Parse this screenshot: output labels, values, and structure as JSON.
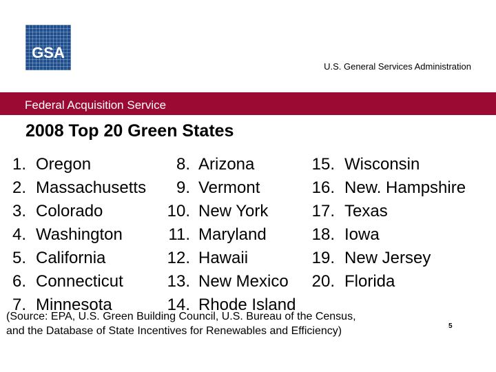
{
  "header": {
    "logo_text": "GSA",
    "agency_name": "U.S. General Services Administration"
  },
  "band": {
    "label": "Federal Acquisition Service"
  },
  "title": "2008 Top 20 Green States",
  "states": [
    {
      "rank": "1.",
      "name": "Oregon"
    },
    {
      "rank": "2.",
      "name": "Massachusetts"
    },
    {
      "rank": "3.",
      "name": "Colorado"
    },
    {
      "rank": "4.",
      "name": "Washington"
    },
    {
      "rank": "5.",
      "name": "California"
    },
    {
      "rank": "6.",
      "name": "Connecticut"
    },
    {
      "rank": "7.",
      "name": "Minnesota"
    },
    {
      "rank": "8.",
      "name": "Arizona"
    },
    {
      "rank": "9.",
      "name": "Vermont"
    },
    {
      "rank": "10.",
      "name": "New York"
    },
    {
      "rank": "11.",
      "name": "Maryland"
    },
    {
      "rank": "12.",
      "name": "Hawaii"
    },
    {
      "rank": "13.",
      "name": "New Mexico"
    },
    {
      "rank": "14.",
      "name": "Rhode Island"
    },
    {
      "rank": "15.",
      "name": "Wisconsin"
    },
    {
      "rank": "16.",
      "name": "New.  Hampshire"
    },
    {
      "rank": "17.",
      "name": "Texas"
    },
    {
      "rank": "18.",
      "name": "Iowa"
    },
    {
      "rank": "19.",
      "name": "New Jersey"
    },
    {
      "rank": "20.",
      "name": "Florida"
    }
  ],
  "source": {
    "line1": "(Source:  EPA, U.S. Green Building Council, U.S. Bureau of the Census,",
    "line2": "and the Database of State Incentives for Renewables and Efficiency)"
  },
  "page_number": "5",
  "colors": {
    "band": "#9b0a33",
    "logo": "#1f4f8e"
  }
}
